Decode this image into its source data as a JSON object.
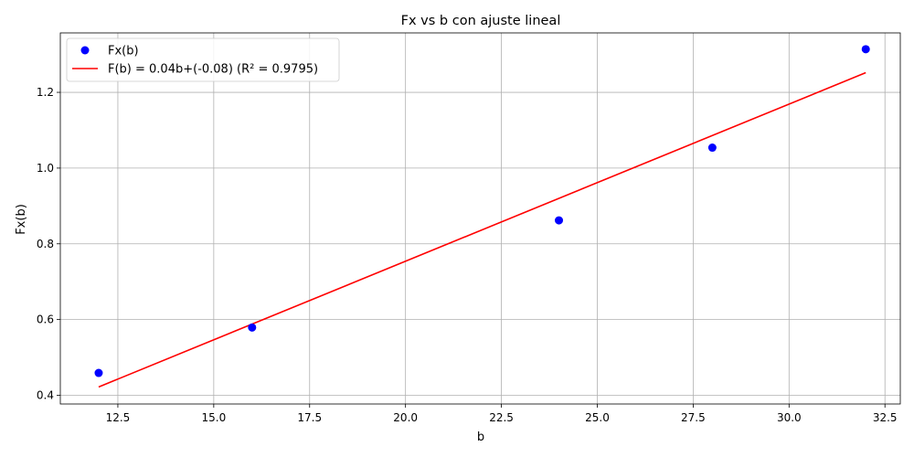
{
  "chart_data": {
    "type": "scatter",
    "title": "Fx vs b con ajuste lineal",
    "xlabel": "b",
    "ylabel": "Fx(b)",
    "xlim": [
      11.0,
      32.9
    ],
    "ylim": [
      0.377,
      1.357
    ],
    "x_ticks": [
      12.5,
      15.0,
      17.5,
      20.0,
      22.5,
      25.0,
      27.5,
      30.0,
      32.5
    ],
    "x_tick_labels": [
      "12.5",
      "15.0",
      "17.5",
      "20.0",
      "22.5",
      "25.0",
      "27.5",
      "30.0",
      "32.5"
    ],
    "y_ticks": [
      0.4,
      0.6,
      0.8,
      1.0,
      1.2
    ],
    "y_tick_labels": [
      "0.4",
      "0.6",
      "0.8",
      "1.0",
      "1.2"
    ],
    "grid": true,
    "legend_position": "top-left",
    "series": [
      {
        "name": "Fx(b)",
        "kind": "scatter",
        "color": "#0000ff",
        "x": [
          12,
          16,
          24,
          28,
          32
        ],
        "y": [
          0.459,
          0.579,
          0.862,
          1.054,
          1.314
        ]
      },
      {
        "name": "F(b) = 0.04b+(-0.08) (R² = 0.9795)",
        "kind": "line",
        "color": "#ff0000",
        "x": [
          12,
          32
        ],
        "y": [
          0.422,
          1.252
        ]
      }
    ]
  }
}
